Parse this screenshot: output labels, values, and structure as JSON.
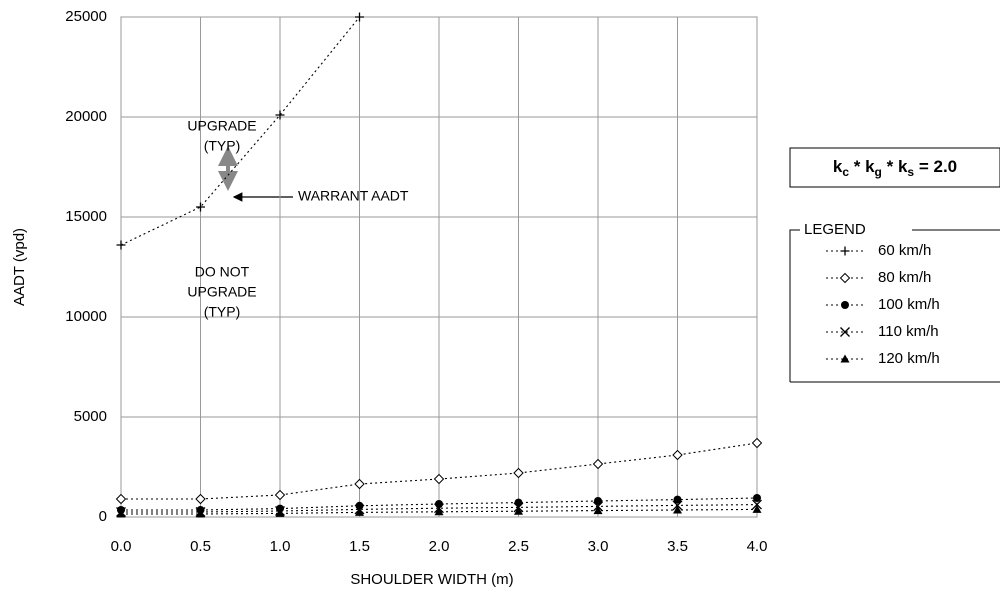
{
  "chart_data": {
    "type": "line",
    "x_label": "SHOULDER WIDTH (m)",
    "y_label": "AADT (vpd)",
    "x": [
      0,
      0.5,
      1,
      1.5,
      2,
      2.5,
      3,
      3.5,
      4
    ],
    "xlim": [
      0,
      4
    ],
    "xticks": [
      {
        "value": 0,
        "label": "0.0"
      },
      0.5,
      {
        "value": 1,
        "label": "1.0"
      },
      1.5,
      {
        "value": 2,
        "label": "2.0"
      },
      2.5,
      {
        "value": 3,
        "label": "3.0"
      },
      3.5,
      {
        "value": 4,
        "label": "4.0"
      }
    ],
    "ylim": [
      0,
      25000
    ],
    "yticks": [
      0,
      5000,
      10000,
      15000,
      20000,
      25000
    ],
    "grid": true,
    "legend_title": "LEGEND",
    "legend_position": "right",
    "formula": [
      {
        "base": "k",
        "sub": "c",
        "rest": " * "
      },
      {
        "base": "k",
        "sub": "g",
        "rest": " * "
      },
      {
        "base": "k",
        "sub": "s",
        "rest": " = 2.0"
      }
    ],
    "annotations": [
      {
        "lines": [
          "UPGRADE",
          "(TYP)"
        ]
      },
      {
        "lines": [
          "DO NOT",
          "UPGRADE",
          "(TYP)"
        ]
      },
      {
        "lines": [
          "WARRANT AADT"
        ]
      }
    ],
    "series": [
      {
        "name": "60 km/h",
        "color": "#000000",
        "marker": "plus",
        "values": [
          13600,
          15500,
          20100,
          25000,
          null,
          null,
          null,
          null,
          null
        ]
      },
      {
        "name": "80 km/h",
        "color": "#000000",
        "marker": "diamond",
        "values": [
          900,
          900,
          1100,
          1650,
          1900,
          2200,
          2650,
          3100,
          3700
        ]
      },
      {
        "name": "100 km/h",
        "color": "#000000",
        "marker": "circle",
        "values": [
          350,
          350,
          420,
          560,
          650,
          720,
          800,
          870,
          950
        ]
      },
      {
        "name": "110 km/h",
        "color": "#000000",
        "marker": "cross",
        "values": [
          250,
          250,
          300,
          380,
          440,
          480,
          530,
          580,
          620
        ]
      },
      {
        "name": "120 km/h",
        "color": "#000000",
        "marker": "triangle",
        "values": [
          150,
          150,
          180,
          230,
          260,
          290,
          320,
          350,
          380
        ]
      }
    ]
  }
}
